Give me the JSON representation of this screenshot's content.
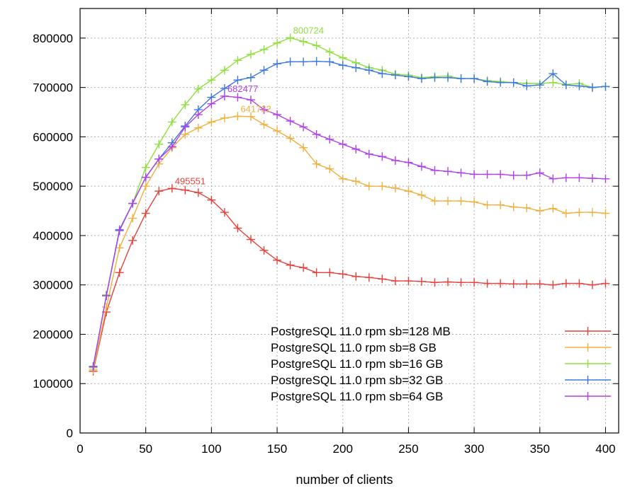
{
  "chart_data": {
    "type": "line",
    "title": "",
    "xlabel": "number of clients",
    "ylabel": "",
    "xlim": [
      0,
      410
    ],
    "ylim": [
      0,
      860000
    ],
    "x_ticks": [
      0,
      50,
      100,
      150,
      200,
      250,
      300,
      350,
      400
    ],
    "y_ticks": [
      0,
      100000,
      200000,
      300000,
      400000,
      500000,
      600000,
      700000,
      800000
    ],
    "grid": true,
    "legend_position": "bottom-right",
    "x": [
      10,
      20,
      30,
      40,
      50,
      60,
      70,
      80,
      90,
      100,
      110,
      120,
      130,
      140,
      150,
      160,
      170,
      180,
      190,
      200,
      210,
      220,
      230,
      240,
      250,
      260,
      270,
      280,
      290,
      300,
      310,
      320,
      330,
      340,
      350,
      360,
      370,
      380,
      390,
      400
    ],
    "series": [
      {
        "name": "PostgreSQL 11.0 rpm sb=128 MB",
        "color": "#e8413c",
        "values": [
          125000,
          245000,
          325000,
          390000,
          445000,
          490000,
          495551,
          492000,
          487000,
          472000,
          447000,
          415000,
          392000,
          370000,
          350000,
          340000,
          335000,
          325000,
          325000,
          322000,
          317000,
          315000,
          312000,
          308000,
          308000,
          307000,
          305000,
          306000,
          305000,
          305000,
          303000,
          303000,
          302000,
          302000,
          302000,
          300000,
          303000,
          303000,
          300000,
          303000
        ],
        "peak": {
          "x": 70,
          "value": 495551,
          "label": "495551"
        }
      },
      {
        "name": "PostgreSQL 11.0 rpm sb=8 GB",
        "color": "#f0b040",
        "values": [
          128000,
          255000,
          375000,
          435000,
          500000,
          545000,
          578000,
          605000,
          618000,
          630000,
          638000,
          641722,
          641000,
          625000,
          612000,
          597000,
          578000,
          545000,
          535000,
          515000,
          510000,
          500000,
          500000,
          496000,
          490000,
          482000,
          470000,
          470000,
          470000,
          468000,
          462000,
          462000,
          458000,
          456000,
          450000,
          455000,
          445000,
          447000,
          447000,
          445000
        ],
        "peak": {
          "x": 120,
          "value": 641722,
          "label": "641722"
        }
      },
      {
        "name": "PostgreSQL 11.0 rpm sb=16 GB",
        "color": "#8ee03c",
        "values": [
          132000,
          280000,
          410000,
          465000,
          538000,
          585000,
          630000,
          665000,
          697000,
          715000,
          735000,
          755000,
          767000,
          777000,
          790000,
          800724,
          793000,
          785000,
          772000,
          760000,
          750000,
          740000,
          735000,
          727000,
          725000,
          720000,
          722000,
          723000,
          718000,
          718000,
          714000,
          712000,
          710000,
          708000,
          708000,
          710000,
          706000,
          708000,
          700000,
          702000
        ],
        "peak": {
          "x": 160,
          "value": 800724,
          "label": "800724"
        }
      },
      {
        "name": "PostgreSQL 11.0 rpm sb=32 GB",
        "color": "#3a78e0",
        "values": [
          135000,
          278000,
          412000,
          465000,
          518000,
          555000,
          588000,
          622000,
          655000,
          680000,
          698000,
          715000,
          720000,
          735000,
          748000,
          752000,
          752000,
          753000,
          752000,
          745000,
          740000,
          735000,
          728000,
          725000,
          722000,
          718000,
          720000,
          720000,
          718000,
          718000,
          712000,
          710000,
          710000,
          703000,
          705000,
          728000,
          705000,
          703000,
          700000,
          702000
        ],
        "peak": null
      },
      {
        "name": "PostgreSQL 11.0 rpm sb=64 GB",
        "color": "#b040e8",
        "values": [
          134000,
          278000,
          410000,
          465000,
          518000,
          555000,
          580000,
          620000,
          645000,
          667000,
          682477,
          680000,
          675000,
          655000,
          645000,
          632000,
          620000,
          605000,
          595000,
          585000,
          575000,
          565000,
          560000,
          552000,
          548000,
          540000,
          532000,
          530000,
          527000,
          524000,
          524000,
          524000,
          522000,
          522000,
          527000,
          515000,
          517000,
          517000,
          516000,
          515000
        ],
        "peak": {
          "x": 110,
          "value": 682477,
          "label": "682477"
        }
      }
    ]
  }
}
